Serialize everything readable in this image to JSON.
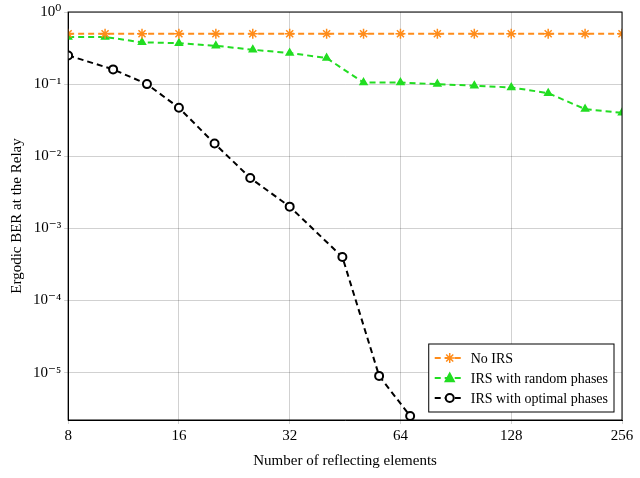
{
  "chart_data": {
    "type": "line",
    "x_label": "Number of reflecting elements",
    "y_label": "Ergodic BER at the Relay",
    "log": true,
    "grid": true,
    "legend": "lower right",
    "xlim": [
      8,
      256
    ],
    "xticks": [
      8,
      16,
      32,
      64,
      128,
      256
    ],
    "ylim": [
      2.2e-06,
      1
    ],
    "yticks": [
      {
        "value": 1e-05,
        "label": "10⁻⁵"
      },
      {
        "value": 0.0001,
        "label": "10⁻⁴"
      },
      {
        "value": 0.001,
        "label": "10⁻³"
      },
      {
        "value": 0.01,
        "label": "10⁻²"
      },
      {
        "value": 0.1,
        "label": "10⁻¹"
      },
      {
        "value": 1,
        "label": "10⁰"
      }
    ],
    "series": [
      {
        "name": "No IRS",
        "color": "#ff8c1a",
        "marker": "star",
        "line_style": "dashed",
        "x": [
          8,
          10.08,
          12.7,
          16,
          20.16,
          25.4,
          32,
          40.32,
          50.8,
          64,
          80.63,
          101.6,
          128,
          161.3,
          203.2,
          256
        ],
        "values": [
          0.5,
          0.5,
          0.5,
          0.5,
          0.5,
          0.5,
          0.5,
          0.5,
          0.5,
          0.5,
          0.5,
          0.5,
          0.5,
          0.5,
          0.5,
          0.5
        ]
      },
      {
        "name": "IRS with random phases",
        "color": "#22dd22",
        "marker": "triangle",
        "line_style": "dashed",
        "x": [
          8,
          10.08,
          12.7,
          16,
          20.16,
          25.4,
          32,
          40.32,
          50.8,
          64,
          80.63,
          101.6,
          128,
          161.3,
          203.2,
          256
        ],
        "values": [
          0.45,
          0.45,
          0.38,
          0.37,
          0.34,
          0.3,
          0.27,
          0.23,
          0.105,
          0.105,
          0.1,
          0.095,
          0.09,
          0.075,
          0.045,
          0.04
        ]
      },
      {
        "name": "IRS with optimal phases",
        "color": "#000000",
        "marker": "circle",
        "line_style": "dashed",
        "x": [
          8,
          10.6,
          13.1,
          16,
          20,
          25,
          32,
          44.5,
          56,
          68
        ],
        "values": [
          0.25,
          0.16,
          0.1,
          0.047,
          0.015,
          0.005,
          0.002,
          0.0004,
          9e-06,
          2.5e-06
        ]
      }
    ]
  }
}
